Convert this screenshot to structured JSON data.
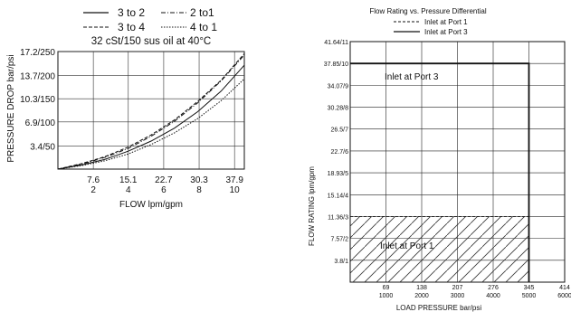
{
  "chart_data": [
    {
      "type": "line",
      "title": "32 cSt/150 sus oil at 40°C",
      "xlabel": "FLOW lpm/gpm",
      "ylabel": "PRESSURE DROP bar/psi",
      "x_ticks_top": [
        "7.6",
        "15.1",
        "22.7",
        "30.3",
        "37.9"
      ],
      "x_ticks_bottom": [
        "2",
        "4",
        "6",
        "8",
        "10"
      ],
      "y_ticks": [
        "3.4/50",
        "6.9/100",
        "10.3/150",
        "13.7/200",
        "17.2/250"
      ],
      "xlim": [
        0,
        40
      ],
      "ylim": [
        0,
        17.2
      ],
      "legend": [
        "3 to 2",
        "2 to1",
        "3 to 4",
        "4 to 1"
      ],
      "series": [
        {
          "name": "3 to 2",
          "style": "solid",
          "x": [
            0,
            5,
            10,
            15,
            20,
            25,
            30,
            35,
            40
          ],
          "y": [
            0,
            0.6,
            1.4,
            2.6,
            4.1,
            6.0,
            8.4,
            11.4,
            15.2
          ]
        },
        {
          "name": "2 to1",
          "style": "dashdot",
          "x": [
            0,
            5,
            10,
            15,
            20,
            25,
            30,
            35,
            40
          ],
          "y": [
            0,
            0.7,
            1.7,
            3.0,
            4.8,
            7.0,
            9.7,
            12.9,
            16.7
          ]
        },
        {
          "name": "3 to 4",
          "style": "dashed",
          "x": [
            0,
            5,
            10,
            15,
            20,
            25,
            30,
            35,
            40
          ],
          "y": [
            0,
            0.8,
            1.8,
            3.2,
            5.0,
            7.2,
            9.9,
            13.0,
            16.9
          ]
        },
        {
          "name": "4 to 1",
          "style": "dotted",
          "x": [
            0,
            5,
            10,
            15,
            20,
            25,
            30,
            35,
            40
          ],
          "y": [
            0,
            0.5,
            1.2,
            2.2,
            3.6,
            5.3,
            7.4,
            10.0,
            13.2
          ]
        }
      ]
    },
    {
      "type": "area",
      "title": "Flow Rating vs. Pressure Differential",
      "xlabel": "LOAD PRESSURE bar/psi",
      "ylabel": "FLOW RATING lpm/gpm",
      "legend": [
        "Inlet at Port 1",
        "Inlet at Port 3"
      ],
      "x_ticks": [
        {
          "top": "69",
          "bottom": "1000"
        },
        {
          "top": "138",
          "bottom": "2000"
        },
        {
          "top": "207",
          "bottom": "3000"
        },
        {
          "top": "276",
          "bottom": "4000"
        },
        {
          "top": "345",
          "bottom": "5000"
        },
        {
          "top": "414",
          "bottom": "6000"
        }
      ],
      "y_ticks": [
        "3.8/1",
        "7.57/2",
        "11.36/3",
        "15.14/4",
        "18.93/5",
        "22.7/6",
        "26.5/7",
        "30.28/8",
        "34.07/9",
        "37.85/10",
        "41.64/11"
      ],
      "regions": [
        {
          "label": "Inlet at Port 1",
          "style": "hatched",
          "x_range": [
            0,
            345
          ],
          "y_range": [
            0,
            11.36
          ]
        },
        {
          "label": "Inlet at Port 3",
          "style": "solid-outline",
          "x_range": [
            0,
            345
          ],
          "y_range": [
            0,
            37.85
          ]
        }
      ]
    }
  ]
}
